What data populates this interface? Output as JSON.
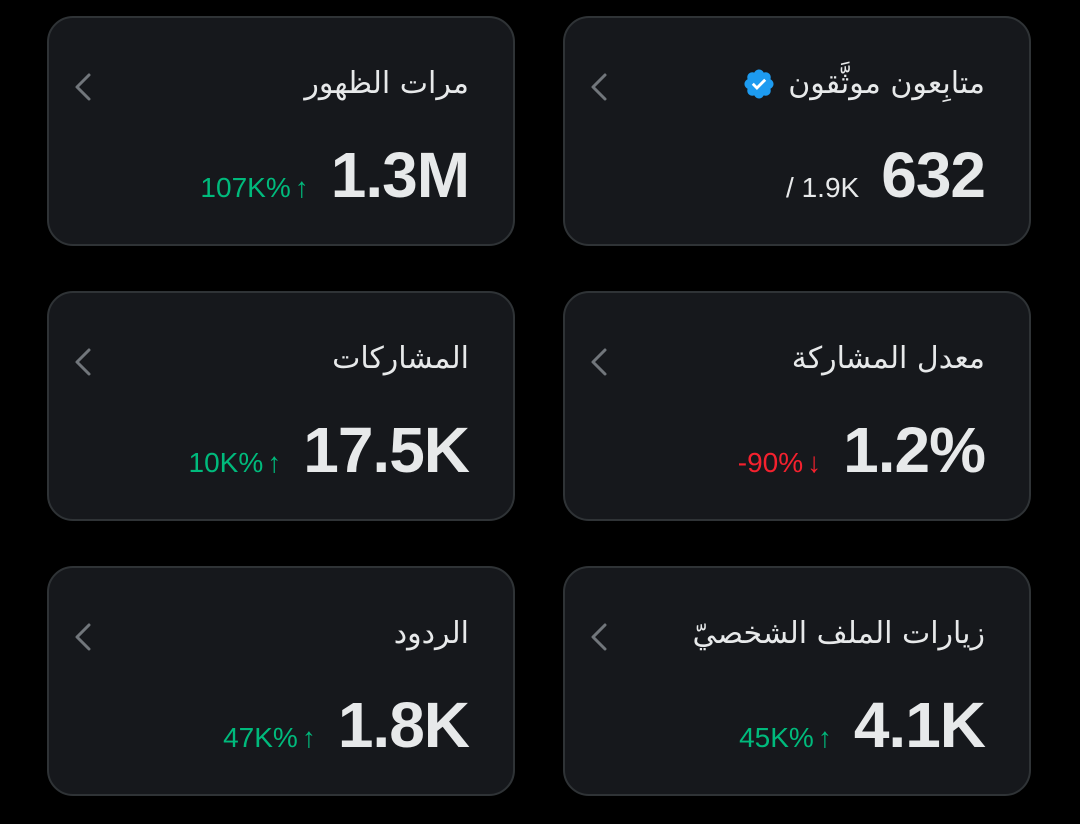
{
  "colors": {
    "background": "#000000",
    "card": "#16181c",
    "card_border": "#2f3336",
    "text": "#e7e9ea",
    "muted": "#71767b",
    "positive": "#00ba7c",
    "negative": "#f4212e",
    "verified": "#1d9bf0"
  },
  "cards": {
    "verified_followers": {
      "title": "متابِعون موثَّقون",
      "value": "632",
      "secondary": "/ 1.9K",
      "icon": "verified-badge-icon"
    },
    "impressions": {
      "title": "مرات الظهور",
      "value": "1.3M",
      "delta": "107K%",
      "direction": "up"
    },
    "engagement_rate": {
      "title": "معدل المشاركة",
      "value": "1.2%",
      "delta": "-90%",
      "direction": "down"
    },
    "engagements": {
      "title": "المشاركات",
      "value": "17.5K",
      "delta": "10K%",
      "direction": "up"
    },
    "profile_visits": {
      "title": "زيارات الملف الشخصيّ",
      "value": "4.1K",
      "delta": "45K%",
      "direction": "up"
    },
    "replies": {
      "title": "الردود",
      "value": "1.8K",
      "delta": "47K%",
      "direction": "up"
    }
  },
  "arrows": {
    "up": "↑",
    "down": "↓"
  },
  "icons": {
    "chevron": "chevron-left-icon",
    "arrow_up": "arrow-up-icon",
    "arrow_down": "arrow-down-icon"
  }
}
